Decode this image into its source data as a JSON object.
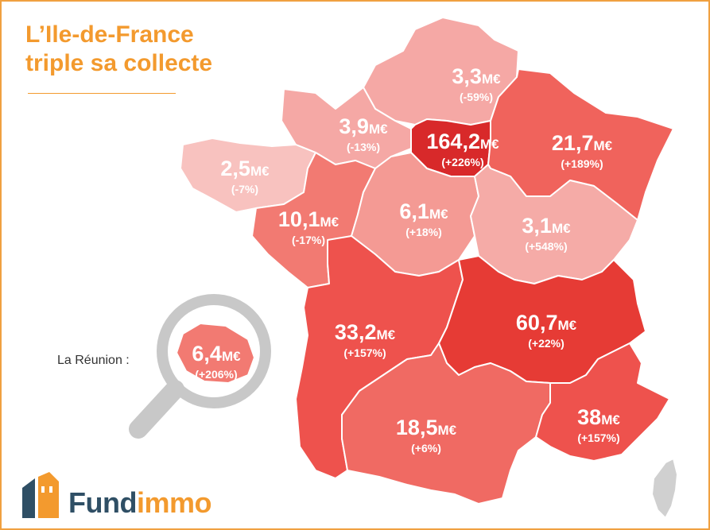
{
  "title": {
    "line1": "L’Ile-de-France",
    "line2": "triple sa collecte"
  },
  "unit": "M€",
  "reunion": {
    "label": "La Réunion :"
  },
  "regions": [
    {
      "id": "nord",
      "value": "3,3",
      "change": "(-59%)",
      "color": "#f5a8a5"
    },
    {
      "id": "normandie",
      "value": "3,9",
      "change": "(-13%)",
      "color": "#f5a8a5"
    },
    {
      "id": "ile-de-france",
      "value": "164,2",
      "change": "(+226%)",
      "color": "#d8292a"
    },
    {
      "id": "grand-est",
      "value": "21,7",
      "change": "(+189%)",
      "color": "#f0635c"
    },
    {
      "id": "bretagne",
      "value": "2,5",
      "change": "(-7%)",
      "color": "#f8c2bf"
    },
    {
      "id": "pays-de-la-loire",
      "value": "10,1",
      "change": "(-17%)",
      "color": "#f27a72"
    },
    {
      "id": "centre",
      "value": "6,1",
      "change": "(+18%)",
      "color": "#f49a94"
    },
    {
      "id": "bourgogne",
      "value": "3,1",
      "change": "(+548%)",
      "color": "#f5aba7"
    },
    {
      "id": "nouvelle-aquitaine",
      "value": "33,2",
      "change": "(+157%)",
      "color": "#ee524d"
    },
    {
      "id": "auvergne-rhone-alpes",
      "value": "60,7",
      "change": "(+22%)",
      "color": "#e63b35"
    },
    {
      "id": "occitanie",
      "value": "18,5",
      "change": "(+6%)",
      "color": "#f06a63"
    },
    {
      "id": "paca",
      "value": "38",
      "change": "(+157%)",
      "color": "#ee524d"
    },
    {
      "id": "la-reunion",
      "value": "6,4",
      "change": "(+206%)",
      "color": "#f27a72"
    },
    {
      "id": "corse",
      "value": "",
      "change": "",
      "color": "#d0d0d0"
    }
  ],
  "brand": {
    "name_part1": "Fund",
    "name_part2": "immo",
    "colors": {
      "dark": "#2f4f65",
      "orange": "#f39a2e"
    }
  },
  "icons": [
    "magnifier-icon",
    "fundimmo-logo-icon"
  ]
}
